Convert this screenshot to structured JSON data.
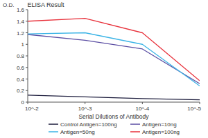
{
  "chart_data": {
    "type": "line",
    "title": "ELISA Result",
    "x_label": "Serial Dilutions of Antibody",
    "y_label": "O.D.",
    "log": "x",
    "grid": false,
    "legend": "bottom",
    "x": [
      0.01,
      0.001,
      0.0001,
      1e-05
    ],
    "xlim": [
      0.01,
      1e-05
    ],
    "xticks": [
      {
        "value": 0.01,
        "label": "10^-2"
      },
      {
        "value": 0.001,
        "label": "10^-3"
      },
      {
        "value": 0.0001,
        "label": "10^-4"
      },
      {
        "value": 1e-05,
        "label": "10^-5"
      }
    ],
    "ylim": [
      0,
      1.6
    ],
    "yticks": [
      0,
      0.2,
      0.4,
      0.6,
      0.8,
      1,
      1.2,
      1.4,
      1.6
    ],
    "series": [
      {
        "name": "Control Antigen=100ng",
        "color": "#1c1c3c",
        "values": [
          0.12,
          0.09,
          0.06,
          0.04
        ]
      },
      {
        "name": "Antigen=10ng",
        "color": "#5b4ea3",
        "values": [
          1.17,
          1.07,
          0.92,
          0.32
        ]
      },
      {
        "name": "Antigen=50ng",
        "color": "#3cb4e6",
        "values": [
          1.18,
          1.2,
          1.0,
          0.28
        ]
      },
      {
        "name": "Antigen=100ng",
        "color": "#e8323c",
        "values": [
          1.4,
          1.45,
          1.2,
          0.37
        ]
      }
    ]
  }
}
